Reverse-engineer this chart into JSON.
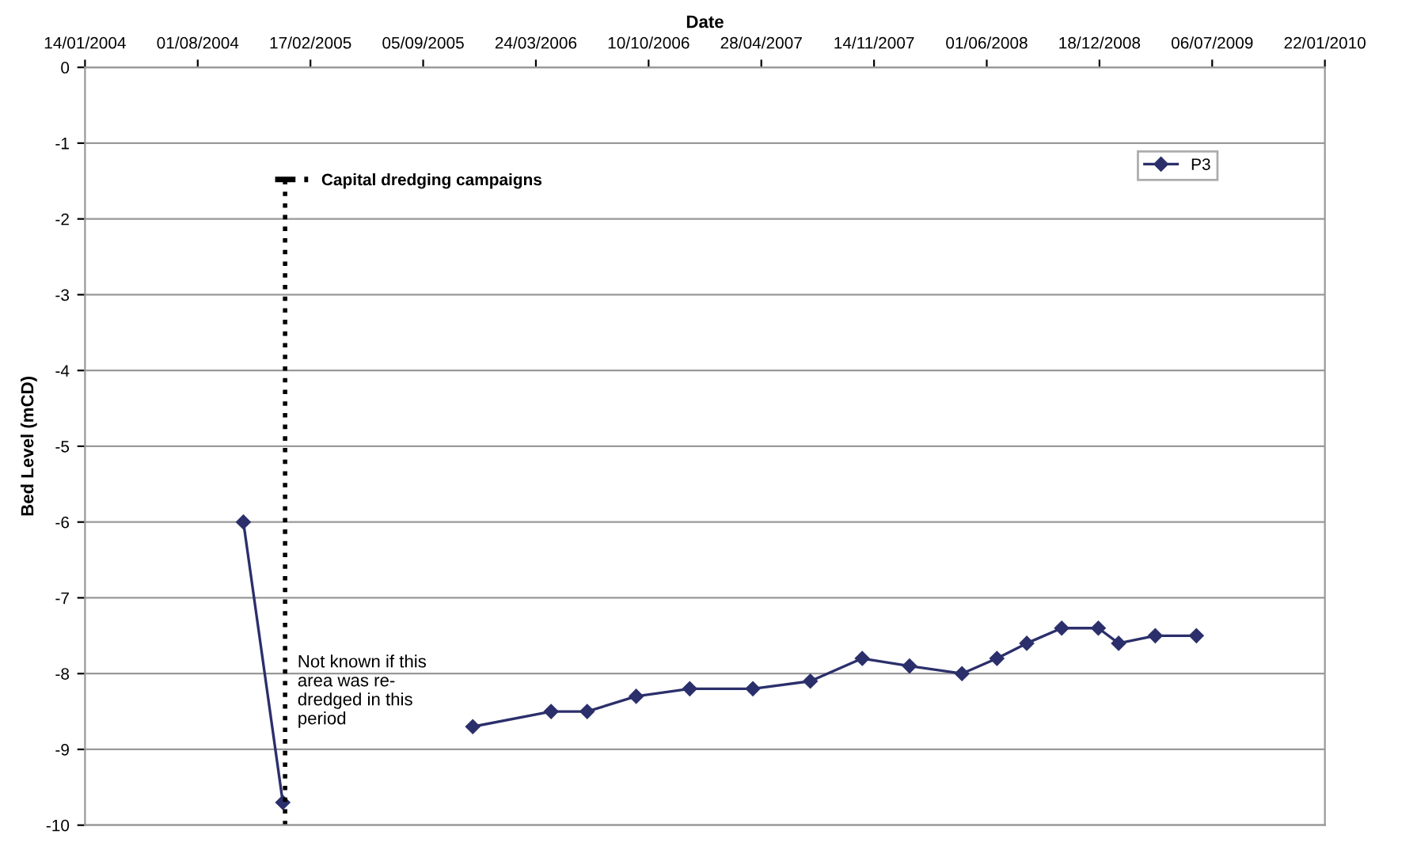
{
  "chart_data": {
    "type": "line",
    "xlabel": "Date",
    "ylabel": "Bed Level (mCD)",
    "xlim": [
      "2004-01-14",
      "2010-01-22"
    ],
    "xticks": [
      {
        "value": "2004-01-14",
        "label": "14/01/2004"
      },
      {
        "value": "2004-08-01",
        "label": "01/08/2004"
      },
      {
        "value": "2005-02-17",
        "label": "17/02/2005"
      },
      {
        "value": "2005-09-05",
        "label": "05/09/2005"
      },
      {
        "value": "2006-03-24",
        "label": "24/03/2006"
      },
      {
        "value": "2006-10-10",
        "label": "10/10/2006"
      },
      {
        "value": "2007-04-28",
        "label": "28/04/2007"
      },
      {
        "value": "2007-11-14",
        "label": "14/11/2007"
      },
      {
        "value": "2008-06-01",
        "label": "01/06/2008"
      },
      {
        "value": "2008-12-18",
        "label": "18/12/2008"
      },
      {
        "value": "2009-07-06",
        "label": "06/07/2009"
      },
      {
        "value": "2010-01-22",
        "label": "22/01/2010"
      }
    ],
    "ylim": [
      -10,
      0
    ],
    "yticks": [
      -10,
      -9,
      -8,
      -7,
      -6,
      -5,
      -4,
      -3,
      -2,
      -1,
      0
    ],
    "grid": "y",
    "legend": "top right",
    "marker": "diamond",
    "line_style": "solid",
    "series": [
      {
        "name": "P3",
        "color": "#2b2f6b",
        "x": [
          "2004-10-21",
          "2004-12-30",
          "2005-06-15",
          "2005-12-02",
          "2006-04-20",
          "2006-06-23",
          "2006-09-18",
          "2006-12-22",
          "2007-04-13",
          "2007-07-24",
          "2007-10-24",
          "2008-01-16",
          "2008-04-18",
          "2008-06-19",
          "2008-08-11",
          "2008-10-12",
          "2008-12-16",
          "2009-01-21",
          "2009-03-27",
          "2009-06-08"
        ],
        "values": [
          -6.0,
          -9.7,
          null,
          -8.7,
          -8.5,
          -8.5,
          -8.3,
          -8.2,
          -8.2,
          -8.1,
          -7.8,
          -7.9,
          -8.0,
          -7.8,
          -7.6,
          -7.4,
          -7.4,
          -7.6,
          -7.5,
          -7.5
        ]
      }
    ],
    "ref_lines": [
      {
        "axis": "x",
        "value": "2005-01-03",
        "label": "Capital dredging campaigns",
        "color": "#000000",
        "line_style": "dotted"
      }
    ],
    "annotations": [
      "Not known if this\narea was re-\ndredged in this\nperiod"
    ]
  }
}
